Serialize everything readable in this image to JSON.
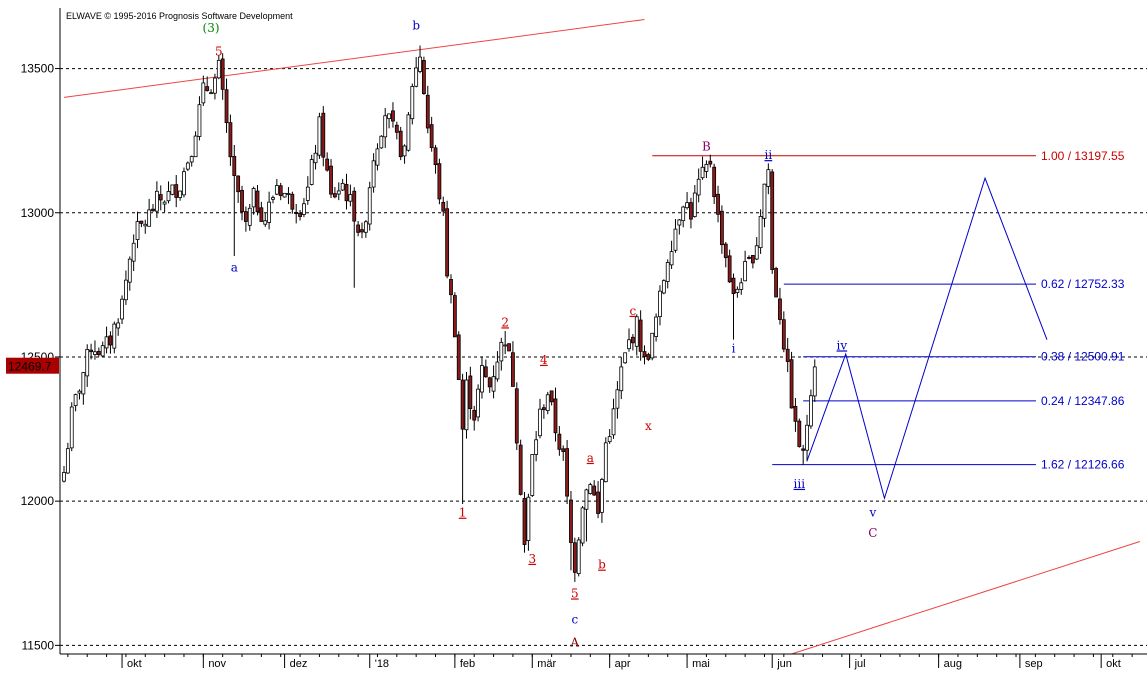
{
  "header": {
    "copyright": "ELWAVE © 1995-2016 Prognosis Software Development"
  },
  "chart_data": {
    "type": "candlestick",
    "ylim": [
      11470,
      13710
    ],
    "y_ticks": [
      11500,
      12000,
      12500,
      13000,
      13500
    ],
    "grid": "horizontal dashed at y ticks",
    "last_price_label": "12469.7",
    "x_ticks": [
      {
        "label": "okt",
        "t": 15
      },
      {
        "label": "nov",
        "t": 36
      },
      {
        "label": "dez",
        "t": 57
      },
      {
        "label": "'18",
        "t": 79
      },
      {
        "label": "feb",
        "t": 101
      },
      {
        "label": "mär",
        "t": 121
      },
      {
        "label": "apr",
        "t": 141
      },
      {
        "label": "mai",
        "t": 161
      },
      {
        "label": "jun",
        "t": 183
      },
      {
        "label": "jul",
        "t": 203
      },
      {
        "label": "aug",
        "t": 226
      },
      {
        "label": "sep",
        "t": 247
      },
      {
        "label": "okt",
        "t": 268
      }
    ],
    "anchors": [
      {
        "t": 0,
        "c": 12100
      },
      {
        "t": 2,
        "c": 12300
      },
      {
        "t": 4,
        "c": 12400
      },
      {
        "t": 7,
        "c": 12540
      },
      {
        "t": 10,
        "c": 12520
      },
      {
        "t": 12,
        "c": 12560
      },
      {
        "t": 15,
        "c": 12690
      },
      {
        "t": 18,
        "c": 12920
      },
      {
        "t": 21,
        "c": 12970
      },
      {
        "t": 24,
        "c": 13040
      },
      {
        "t": 27,
        "c": 13060
      },
      {
        "t": 30,
        "c": 13100
      },
      {
        "t": 33,
        "c": 13230
      },
      {
        "t": 36,
        "c": 13420
      },
      {
        "t": 39,
        "c": 13460
      },
      {
        "t": 40,
        "c": 13500
      },
      {
        "t": 42,
        "c": 13300
      },
      {
        "t": 44,
        "c": 13100
      },
      {
        "t": 47,
        "c": 12950
      },
      {
        "t": 49,
        "c": 13050
      },
      {
        "t": 52,
        "c": 12980
      },
      {
        "t": 55,
        "c": 13100
      },
      {
        "t": 58,
        "c": 13050
      },
      {
        "t": 61,
        "c": 13020
      },
      {
        "t": 63,
        "c": 13080
      },
      {
        "t": 66,
        "c": 13300
      },
      {
        "t": 69,
        "c": 13050
      },
      {
        "t": 72,
        "c": 13100
      },
      {
        "t": 75,
        "c": 13000
      },
      {
        "t": 77,
        "c": 12900
      },
      {
        "t": 80,
        "c": 13200
      },
      {
        "t": 83,
        "c": 13350
      },
      {
        "t": 86,
        "c": 13250
      },
      {
        "t": 88,
        "c": 13200
      },
      {
        "t": 90,
        "c": 13450
      },
      {
        "t": 92,
        "c": 13550
      },
      {
        "t": 94,
        "c": 13300
      },
      {
        "t": 96,
        "c": 13150
      },
      {
        "t": 98,
        "c": 12980
      },
      {
        "t": 99,
        "c": 12800
      },
      {
        "t": 101,
        "c": 12600
      },
      {
        "t": 103,
        "c": 12250
      },
      {
        "t": 104,
        "c": 12400
      },
      {
        "t": 106,
        "c": 12300
      },
      {
        "t": 108,
        "c": 12450
      },
      {
        "t": 110,
        "c": 12400
      },
      {
        "t": 112,
        "c": 12500
      },
      {
        "t": 114,
        "c": 12570
      },
      {
        "t": 116,
        "c": 12420
      },
      {
        "t": 118,
        "c": 12050
      },
      {
        "t": 119,
        "c": 11850
      },
      {
        "t": 121,
        "c": 12150
      },
      {
        "t": 123,
        "c": 12300
      },
      {
        "t": 125,
        "c": 12380
      },
      {
        "t": 127,
        "c": 12250
      },
      {
        "t": 129,
        "c": 12150
      },
      {
        "t": 131,
        "c": 11850
      },
      {
        "t": 132,
        "c": 11780
      },
      {
        "t": 134,
        "c": 12000
      },
      {
        "t": 136,
        "c": 12080
      },
      {
        "t": 138,
        "c": 11950
      },
      {
        "t": 140,
        "c": 12200
      },
      {
        "t": 142,
        "c": 12300
      },
      {
        "t": 144,
        "c": 12450
      },
      {
        "t": 146,
        "c": 12550
      },
      {
        "t": 148,
        "c": 12610
      },
      {
        "t": 150,
        "c": 12480
      },
      {
        "t": 152,
        "c": 12560
      },
      {
        "t": 154,
        "c": 12700
      },
      {
        "t": 156,
        "c": 12850
      },
      {
        "t": 158,
        "c": 12950
      },
      {
        "t": 160,
        "c": 13050
      },
      {
        "t": 162,
        "c": 13000
      },
      {
        "t": 164,
        "c": 13100
      },
      {
        "t": 166,
        "c": 13150
      },
      {
        "t": 167,
        "c": 13180
      },
      {
        "t": 169,
        "c": 12980
      },
      {
        "t": 171,
        "c": 12850
      },
      {
        "t": 173,
        "c": 12700
      },
      {
        "t": 175,
        "c": 12780
      },
      {
        "t": 177,
        "c": 12820
      },
      {
        "t": 179,
        "c": 12900
      },
      {
        "t": 181,
        "c": 13100
      },
      {
        "t": 182,
        "c": 13150
      },
      {
        "t": 183,
        "c": 12800
      },
      {
        "t": 185,
        "c": 12650
      },
      {
        "t": 187,
        "c": 12450
      },
      {
        "t": 189,
        "c": 12250
      },
      {
        "t": 191,
        "c": 12150
      },
      {
        "t": 193,
        "c": 12400
      },
      {
        "t": 194,
        "c": 12490
      }
    ],
    "lows": [
      {
        "t": 0,
        "v": 12070
      },
      {
        "t": 44,
        "v": 12850
      },
      {
        "t": 75,
        "v": 12740
      },
      {
        "t": 103,
        "v": 11990
      },
      {
        "t": 119,
        "v": 11830
      },
      {
        "t": 131,
        "v": 11760
      },
      {
        "t": 132,
        "v": 11720
      },
      {
        "t": 135,
        "v": 11860
      },
      {
        "t": 173,
        "v": 12560
      },
      {
        "t": 191,
        "v": 12126
      }
    ],
    "highs": [
      {
        "t": 40,
        "v": 13520
      },
      {
        "t": 92,
        "v": 13580
      },
      {
        "t": 114,
        "v": 12590
      },
      {
        "t": 148,
        "v": 12630
      },
      {
        "t": 167,
        "v": 13197
      },
      {
        "t": 182,
        "v": 13165
      }
    ],
    "fib_levels": [
      {
        "label": "1.00 / 13197.55",
        "value": 13197.55,
        "color": "#cc0000",
        "t_start": 152
      },
      {
        "label": "0.62 / 12752.33",
        "value": 12752.33,
        "color": "#0000cc",
        "t_start": 186
      },
      {
        "label": "0.38 / 12500.91",
        "value": 12500.91,
        "color": "#0000cc",
        "t_start": 191
      },
      {
        "label": "0.24 / 12347.86",
        "value": 12347.86,
        "color": "#0000cc",
        "t_start": 191
      },
      {
        "label": "1.62 / 12126.66",
        "value": 12126.66,
        "color": "#0000cc",
        "t_start": 183
      }
    ],
    "channel_lines": [
      {
        "t1": 0,
        "v1": 13400,
        "t2": 150,
        "v2": 13670,
        "color": "#ee4444"
      },
      {
        "t1": 188,
        "v1": 11470,
        "t2": 278,
        "v2": 11860,
        "color": "#ee4444"
      }
    ],
    "projection": [
      {
        "t": 192,
        "v": 12140
      },
      {
        "t": 202,
        "v": 12510
      },
      {
        "t": 212,
        "v": 12010
      },
      {
        "t": 238,
        "v": 13120
      },
      {
        "t": 254,
        "v": 12560
      }
    ],
    "projection_color": "#0000cc",
    "wave_labels": [
      {
        "text": "(3)",
        "t": 38,
        "v": 13640,
        "color": "#008800"
      },
      {
        "text": "5",
        "t": 40,
        "v": 13560,
        "color": "#cc0000"
      },
      {
        "text": "a",
        "t": 44,
        "v": 12810,
        "color": "#0000cc"
      },
      {
        "text": "b",
        "t": 91,
        "v": 13650,
        "color": "#0000cc"
      },
      {
        "text": "1",
        "t": 103,
        "v": 11960,
        "color": "#cc0000",
        "underline": true
      },
      {
        "text": "2",
        "t": 114,
        "v": 12620,
        "color": "#cc0000",
        "underline": true
      },
      {
        "text": "3",
        "t": 121,
        "v": 11800,
        "color": "#cc0000",
        "underline": true
      },
      {
        "text": "4",
        "t": 124,
        "v": 12490,
        "color": "#cc0000",
        "underline": true
      },
      {
        "text": "5",
        "t": 132,
        "v": 11680,
        "color": "#cc0000",
        "underline": true
      },
      {
        "text": "c",
        "t": 132,
        "v": 11590,
        "color": "#0000cc"
      },
      {
        "text": "A",
        "t": 132,
        "v": 11510,
        "color": "#880000"
      },
      {
        "text": "a",
        "t": 136,
        "v": 12150,
        "color": "#cc0000",
        "underline": true
      },
      {
        "text": "b",
        "t": 139,
        "v": 11780,
        "color": "#cc0000",
        "underline": true
      },
      {
        "text": "c",
        "t": 147,
        "v": 12660,
        "color": "#cc0000",
        "underline": true
      },
      {
        "text": "x",
        "t": 151,
        "v": 12260,
        "color": "#cc0000"
      },
      {
        "text": "B",
        "t": 166,
        "v": 13230,
        "color": "#880066"
      },
      {
        "text": "i",
        "t": 173,
        "v": 12530,
        "color": "#0000cc"
      },
      {
        "text": "ii",
        "t": 182,
        "v": 13200,
        "color": "#0000cc",
        "underline": true
      },
      {
        "text": "iii",
        "t": 190,
        "v": 12060,
        "color": "#0000cc",
        "underline": true
      },
      {
        "text": "iv",
        "t": 201,
        "v": 12540,
        "color": "#0000cc",
        "underline": true
      },
      {
        "text": "v",
        "t": 209,
        "v": 11960,
        "color": "#0000cc"
      },
      {
        "text": "C",
        "t": 209,
        "v": 11890,
        "color": "#880066"
      }
    ]
  }
}
